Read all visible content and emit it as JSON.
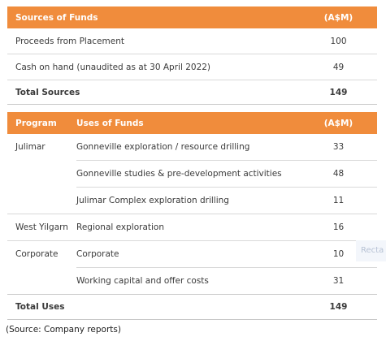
{
  "sources_table": {
    "header": {
      "label": "Sources of Funds",
      "unit": "(A$M)"
    },
    "rows": [
      {
        "label": "Proceeds from Placement",
        "value": "100"
      },
      {
        "label": "Cash on hand (unaudited as at 30 April 2022)",
        "value": "49"
      }
    ],
    "total": {
      "label": "Total Sources",
      "value": "149"
    }
  },
  "uses_table": {
    "header": {
      "program": "Program",
      "uses": "Uses of Funds",
      "unit": "(A$M)"
    },
    "rows": [
      {
        "program": "Julimar",
        "use": "Gonneville exploration / resource drilling",
        "value": "33"
      },
      {
        "program": "",
        "use": "Gonneville studies & pre-development activities",
        "value": "48"
      },
      {
        "program": "",
        "use": "Julimar Complex exploration drilling",
        "value": "11"
      },
      {
        "program": "West Yilgarn",
        "use": "Regional exploration",
        "value": "16"
      },
      {
        "program": "Corporate",
        "use": "Corporate",
        "value": "10"
      },
      {
        "program": "",
        "use": "Working capital and offer costs",
        "value": "31"
      }
    ],
    "total": {
      "label": "Total Uses",
      "value": "149"
    }
  },
  "ghost_overlay": "Recta",
  "footnote": "(Source: Company reports)",
  "colors": {
    "header_bg": "#f08c3c",
    "header_text": "#ffffff"
  }
}
